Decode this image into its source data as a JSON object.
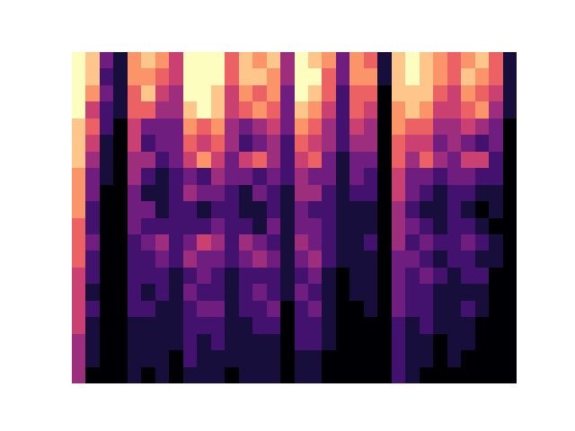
{
  "chart_data": {
    "type": "heatmap",
    "tick_labels": false,
    "color_range": [
      0,
      9
    ],
    "cells": [
      [
        9,
        8,
        3,
        1,
        7,
        8,
        7,
        5,
        9,
        9,
        9,
        6,
        8,
        7,
        8,
        4,
        9,
        8,
        7,
        3,
        7,
        6,
        1,
        8,
        9,
        8,
        7,
        6,
        7,
        8,
        6,
        1
      ],
      [
        9,
        8,
        2,
        1,
        7,
        7,
        6,
        5,
        9,
        9,
        9,
        6,
        8,
        8,
        7,
        4,
        9,
        9,
        6,
        3,
        7,
        7,
        1,
        8,
        9,
        8,
        7,
        6,
        8,
        7,
        6,
        1
      ],
      [
        9,
        7,
        3,
        1,
        6,
        8,
        5,
        4,
        9,
        9,
        8,
        5,
        7,
        6,
        7,
        3,
        9,
        8,
        6,
        2,
        6,
        6,
        0,
        8,
        8,
        8,
        6,
        5,
        7,
        6,
        5,
        1
      ],
      [
        9,
        5,
        2,
        1,
        6,
        6,
        4,
        4,
        8,
        9,
        8,
        5,
        6,
        7,
        6,
        3,
        8,
        7,
        5,
        2,
        6,
        5,
        0,
        7,
        8,
        7,
        5,
        5,
        6,
        7,
        4,
        1
      ],
      [
        8,
        6,
        2,
        0,
        5,
        3,
        3,
        3,
        7,
        6,
        7,
        4,
        3,
        4,
        5,
        3,
        7,
        6,
        4,
        2,
        5,
        4,
        0,
        7,
        6,
        6,
        4,
        4,
        5,
        4,
        3,
        0
      ],
      [
        8,
        5,
        1,
        0,
        5,
        2,
        3,
        3,
        6,
        5,
        6,
        4,
        2,
        3,
        4,
        2,
        6,
        5,
        4,
        2,
        4,
        4,
        0,
        6,
        5,
        5,
        3,
        4,
        3,
        2,
        3,
        0
      ],
      [
        8,
        4,
        1,
        0,
        4,
        4,
        2,
        3,
        5,
        7,
        5,
        3,
        5,
        6,
        4,
        2,
        5,
        6,
        3,
        1,
        3,
        3,
        0,
        6,
        4,
        6,
        4,
        3,
        5,
        5,
        2,
        0
      ],
      [
        7,
        3,
        1,
        0,
        4,
        2,
        1,
        2,
        3,
        2,
        4,
        3,
        3,
        2,
        3,
        2,
        4,
        3,
        3,
        1,
        3,
        2,
        0,
        5,
        3,
        3,
        2,
        3,
        3,
        2,
        2,
        0
      ],
      [
        7,
        3,
        0,
        0,
        3,
        1,
        1,
        2,
        4,
        3,
        3,
        2,
        1,
        3,
        2,
        1,
        4,
        4,
        2,
        1,
        2,
        2,
        0,
        5,
        3,
        2,
        1,
        2,
        2,
        1,
        1,
        0
      ],
      [
        7,
        2,
        0,
        0,
        3,
        3,
        1,
        2,
        2,
        1,
        2,
        2,
        1,
        1,
        2,
        1,
        3,
        2,
        2,
        1,
        1,
        1,
        0,
        4,
        2,
        1,
        1,
        2,
        1,
        0,
        1,
        0
      ],
      [
        6,
        2,
        0,
        0,
        3,
        2,
        2,
        2,
        2,
        2,
        3,
        2,
        2,
        1,
        3,
        1,
        3,
        3,
        2,
        1,
        1,
        1,
        0,
        4,
        3,
        2,
        1,
        2,
        2,
        1,
        0,
        0
      ],
      [
        6,
        3,
        0,
        0,
        2,
        3,
        4,
        2,
        3,
        5,
        4,
        2,
        4,
        3,
        2,
        1,
        4,
        3,
        2,
        1,
        1,
        2,
        0,
        4,
        2,
        3,
        2,
        2,
        3,
        2,
        1,
        0
      ],
      [
        6,
        2,
        0,
        0,
        2,
        2,
        3,
        2,
        4,
        3,
        3,
        2,
        3,
        4,
        3,
        1,
        3,
        4,
        2,
        1,
        1,
        1,
        0,
        3,
        3,
        2,
        1,
        2,
        2,
        1,
        1,
        0
      ],
      [
        5,
        2,
        0,
        0,
        2,
        2,
        2,
        1,
        2,
        3,
        2,
        1,
        2,
        2,
        2,
        1,
        2,
        3,
        1,
        0,
        1,
        1,
        0,
        3,
        2,
        3,
        2,
        1,
        2,
        2,
        0,
        0
      ],
      [
        5,
        1,
        0,
        0,
        2,
        1,
        2,
        1,
        3,
        2,
        2,
        1,
        2,
        3,
        2,
        1,
        3,
        2,
        1,
        0,
        1,
        1,
        0,
        3,
        2,
        2,
        1,
        1,
        1,
        1,
        0,
        0
      ],
      [
        5,
        2,
        0,
        0,
        2,
        2,
        1,
        1,
        2,
        3,
        3,
        1,
        2,
        2,
        3,
        0,
        2,
        3,
        1,
        0,
        0,
        1,
        0,
        3,
        2,
        2,
        1,
        1,
        2,
        1,
        0,
        0
      ],
      [
        5,
        1,
        0,
        0,
        1,
        1,
        1,
        1,
        2,
        2,
        2,
        1,
        1,
        2,
        2,
        0,
        2,
        2,
        1,
        0,
        0,
        0,
        0,
        2,
        1,
        2,
        1,
        1,
        1,
        0,
        0,
        0
      ],
      [
        4,
        1,
        0,
        0,
        1,
        1,
        1,
        1,
        2,
        1,
        2,
        1,
        1,
        1,
        1,
        0,
        2,
        2,
        1,
        0,
        0,
        0,
        0,
        2,
        1,
        1,
        0,
        1,
        1,
        0,
        0,
        0
      ],
      [
        4,
        1,
        0,
        0,
        1,
        1,
        1,
        0,
        2,
        1,
        1,
        1,
        1,
        1,
        1,
        0,
        1,
        1,
        0,
        0,
        0,
        0,
        0,
        2,
        1,
        1,
        0,
        1,
        0,
        0,
        0,
        0
      ],
      [
        4,
        0,
        0,
        0,
        1,
        0,
        1,
        0,
        1,
        1,
        1,
        0,
        1,
        1,
        1,
        0,
        1,
        1,
        0,
        0,
        0,
        0,
        0,
        2,
        1,
        0,
        0,
        0,
        0,
        0,
        0,
        0
      ]
    ]
  }
}
